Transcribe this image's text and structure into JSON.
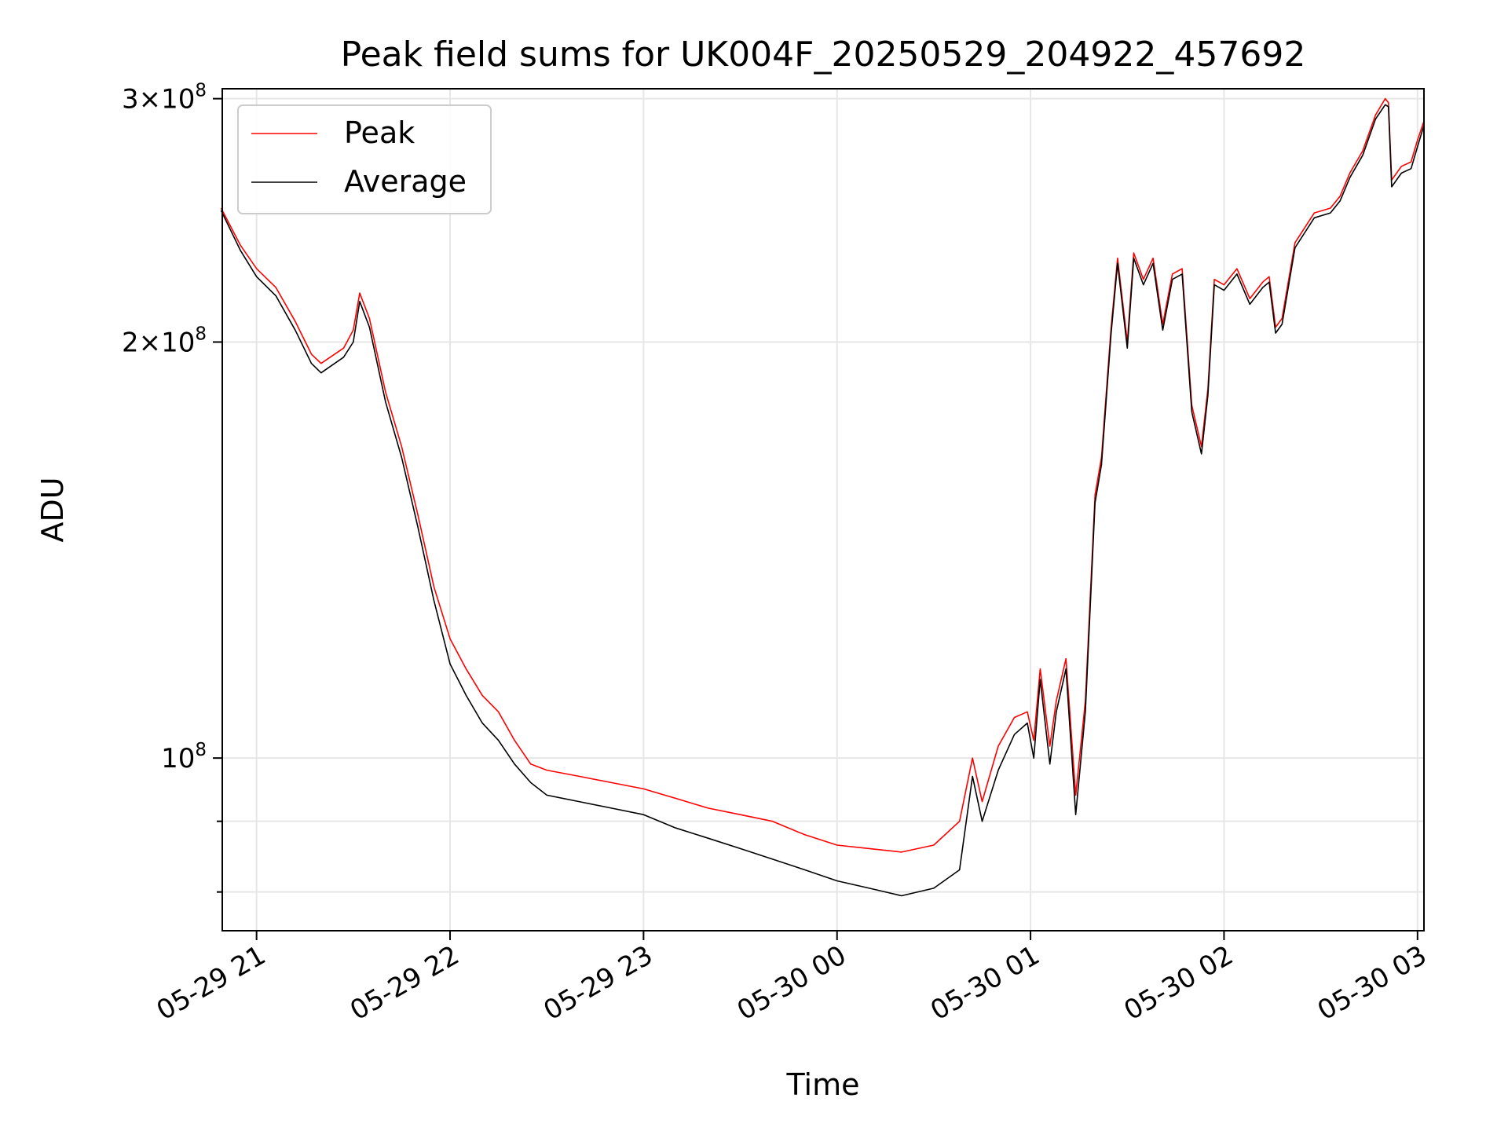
{
  "chart_data": {
    "type": "line",
    "title": "Peak field sums for UK004F_20250529_204922_457692",
    "xlabel": "Time",
    "ylabel": "ADU",
    "y_scale": "log",
    "grid": true,
    "legend_position": "top-left",
    "x_range": [
      "2025-05-29 20:49:22",
      "2025-05-30 03:02:00"
    ],
    "ylim": [
      75000000,
      305000000
    ],
    "x_ticks": [
      "05-29 21",
      "05-29 22",
      "05-29 23",
      "05-30 00",
      "05-30 01",
      "05-30 02",
      "05-30 03"
    ],
    "x_tick_times": [
      "2025-05-29 21:00",
      "2025-05-29 22:00",
      "2025-05-29 23:00",
      "2025-05-30 00:00",
      "2025-05-30 01:00",
      "2025-05-30 02:00",
      "2025-05-30 03:00"
    ],
    "y_ticks": [
      {
        "value": 100000000,
        "mantissa": "",
        "exp": "8"
      },
      {
        "value": 200000000,
        "mantissa": "2",
        "exp": "8"
      },
      {
        "value": 300000000,
        "mantissa": "3",
        "exp": "8"
      }
    ],
    "y_minor_ticks": [
      80000000,
      90000000
    ],
    "series": [
      {
        "name": "Peak",
        "color": "#ff0000",
        "points": [
          [
            "2025-05-29 20:49",
            250000000
          ],
          [
            "2025-05-29 20:55",
            235000000
          ],
          [
            "2025-05-29 21:00",
            226000000
          ],
          [
            "2025-05-29 21:06",
            219000000
          ],
          [
            "2025-05-29 21:12",
            207000000
          ],
          [
            "2025-05-29 21:17",
            196000000
          ],
          [
            "2025-05-29 21:20",
            193000000
          ],
          [
            "2025-05-29 21:27",
            198000000
          ],
          [
            "2025-05-29 21:30",
            204000000
          ],
          [
            "2025-05-29 21:32",
            217000000
          ],
          [
            "2025-05-29 21:35",
            208000000
          ],
          [
            "2025-05-29 21:40",
            184000000
          ],
          [
            "2025-05-29 21:45",
            168000000
          ],
          [
            "2025-05-29 21:50",
            150000000
          ],
          [
            "2025-05-29 21:55",
            133000000
          ],
          [
            "2025-05-29 22:00",
            122000000
          ],
          [
            "2025-05-29 22:05",
            116000000
          ],
          [
            "2025-05-29 22:10",
            111000000
          ],
          [
            "2025-05-29 22:15",
            108000000
          ],
          [
            "2025-05-29 22:20",
            103000000
          ],
          [
            "2025-05-29 22:25",
            99000000
          ],
          [
            "2025-05-29 22:30",
            98000000
          ],
          [
            "2025-05-29 22:40",
            97000000
          ],
          [
            "2025-05-29 22:50",
            96000000
          ],
          [
            "2025-05-29 23:00",
            95000000
          ],
          [
            "2025-05-29 23:10",
            93500000
          ],
          [
            "2025-05-29 23:20",
            92000000
          ],
          [
            "2025-05-29 23:30",
            91000000
          ],
          [
            "2025-05-29 23:40",
            90000000
          ],
          [
            "2025-05-29 23:50",
            88000000
          ],
          [
            "2025-05-30 00:00",
            86500000
          ],
          [
            "2025-05-30 00:10",
            86000000
          ],
          [
            "2025-05-30 00:20",
            85500000
          ],
          [
            "2025-05-30 00:30",
            86500000
          ],
          [
            "2025-05-30 00:38",
            90000000
          ],
          [
            "2025-05-30 00:42",
            100000000
          ],
          [
            "2025-05-30 00:45",
            93000000
          ],
          [
            "2025-05-30 00:50",
            102000000
          ],
          [
            "2025-05-30 00:55",
            107000000
          ],
          [
            "2025-05-30 00:59",
            108000000
          ],
          [
            "2025-05-30 01:01",
            103000000
          ],
          [
            "2025-05-30 01:03",
            116000000
          ],
          [
            "2025-05-30 01:06",
            102000000
          ],
          [
            "2025-05-30 01:08",
            110000000
          ],
          [
            "2025-05-30 01:11",
            118000000
          ],
          [
            "2025-05-30 01:14",
            94000000
          ],
          [
            "2025-05-30 01:17",
            110000000
          ],
          [
            "2025-05-30 01:20",
            155000000
          ],
          [
            "2025-05-30 01:22",
            165000000
          ],
          [
            "2025-05-30 01:25",
            205000000
          ],
          [
            "2025-05-30 01:27",
            230000000
          ],
          [
            "2025-05-30 01:30",
            200000000
          ],
          [
            "2025-05-30 01:32",
            232000000
          ],
          [
            "2025-05-30 01:35",
            222000000
          ],
          [
            "2025-05-30 01:38",
            230000000
          ],
          [
            "2025-05-30 01:41",
            206000000
          ],
          [
            "2025-05-30 01:44",
            224000000
          ],
          [
            "2025-05-30 01:47",
            226000000
          ],
          [
            "2025-05-30 01:50",
            180000000
          ],
          [
            "2025-05-30 01:53",
            168000000
          ],
          [
            "2025-05-30 01:55",
            185000000
          ],
          [
            "2025-05-30 01:57",
            222000000
          ],
          [
            "2025-05-30 02:00",
            220000000
          ],
          [
            "2025-05-30 02:04",
            226000000
          ],
          [
            "2025-05-30 02:08",
            215000000
          ],
          [
            "2025-05-30 02:12",
            221000000
          ],
          [
            "2025-05-30 02:14",
            223000000
          ],
          [
            "2025-05-30 02:16",
            205000000
          ],
          [
            "2025-05-30 02:18",
            208000000
          ],
          [
            "2025-05-30 02:22",
            236000000
          ],
          [
            "2025-05-30 02:28",
            248000000
          ],
          [
            "2025-05-30 02:33",
            250000000
          ],
          [
            "2025-05-30 02:36",
            255000000
          ],
          [
            "2025-05-30 02:39",
            265000000
          ],
          [
            "2025-05-30 02:43",
            275000000
          ],
          [
            "2025-05-30 02:47",
            292000000
          ],
          [
            "2025-05-30 02:50",
            300000000
          ],
          [
            "2025-05-30 02:51",
            298000000
          ],
          [
            "2025-05-30 02:52",
            262000000
          ],
          [
            "2025-05-30 02:55",
            268000000
          ],
          [
            "2025-05-30 02:58",
            270000000
          ],
          [
            "2025-05-30 03:00",
            280000000
          ],
          [
            "2025-05-30 03:02",
            289000000
          ]
        ]
      },
      {
        "name": "Average",
        "color": "#000000",
        "points": [
          [
            "2025-05-29 20:49",
            249000000
          ],
          [
            "2025-05-29 20:55",
            233000000
          ],
          [
            "2025-05-29 21:00",
            223000000
          ],
          [
            "2025-05-29 21:06",
            216000000
          ],
          [
            "2025-05-29 21:12",
            204000000
          ],
          [
            "2025-05-29 21:17",
            193000000
          ],
          [
            "2025-05-29 21:20",
            190000000
          ],
          [
            "2025-05-29 21:27",
            195000000
          ],
          [
            "2025-05-29 21:30",
            200000000
          ],
          [
            "2025-05-29 21:32",
            214000000
          ],
          [
            "2025-05-29 21:35",
            205000000
          ],
          [
            "2025-05-29 21:40",
            181000000
          ],
          [
            "2025-05-29 21:45",
            165000000
          ],
          [
            "2025-05-29 21:50",
            147000000
          ],
          [
            "2025-05-29 21:55",
            130000000
          ],
          [
            "2025-05-29 22:00",
            117000000
          ],
          [
            "2025-05-29 22:05",
            111000000
          ],
          [
            "2025-05-29 22:10",
            106000000
          ],
          [
            "2025-05-29 22:15",
            103000000
          ],
          [
            "2025-05-29 22:20",
            99000000
          ],
          [
            "2025-05-29 22:25",
            96000000
          ],
          [
            "2025-05-29 22:30",
            94000000
          ],
          [
            "2025-05-29 22:40",
            93000000
          ],
          [
            "2025-05-29 22:50",
            92000000
          ],
          [
            "2025-05-29 23:00",
            91000000
          ],
          [
            "2025-05-29 23:10",
            89000000
          ],
          [
            "2025-05-29 23:20",
            87500000
          ],
          [
            "2025-05-29 23:30",
            86000000
          ],
          [
            "2025-05-29 23:40",
            84500000
          ],
          [
            "2025-05-29 23:50",
            83000000
          ],
          [
            "2025-05-30 00:00",
            81500000
          ],
          [
            "2025-05-30 00:10",
            80500000
          ],
          [
            "2025-05-30 00:20",
            79500000
          ],
          [
            "2025-05-30 00:30",
            80500000
          ],
          [
            "2025-05-30 00:38",
            83000000
          ],
          [
            "2025-05-30 00:42",
            97000000
          ],
          [
            "2025-05-30 00:45",
            90000000
          ],
          [
            "2025-05-30 00:50",
            98000000
          ],
          [
            "2025-05-30 00:55",
            104000000
          ],
          [
            "2025-05-30 00:59",
            106000000
          ],
          [
            "2025-05-30 01:01",
            100000000
          ],
          [
            "2025-05-30 01:03",
            114000000
          ],
          [
            "2025-05-30 01:06",
            99000000
          ],
          [
            "2025-05-30 01:08",
            108000000
          ],
          [
            "2025-05-30 01:11",
            116000000
          ],
          [
            "2025-05-30 01:14",
            91000000
          ],
          [
            "2025-05-30 01:17",
            108000000
          ],
          [
            "2025-05-30 01:20",
            153000000
          ],
          [
            "2025-05-30 01:22",
            163000000
          ],
          [
            "2025-05-30 01:25",
            203000000
          ],
          [
            "2025-05-30 01:27",
            228000000
          ],
          [
            "2025-05-30 01:30",
            198000000
          ],
          [
            "2025-05-30 01:32",
            230000000
          ],
          [
            "2025-05-30 01:35",
            220000000
          ],
          [
            "2025-05-30 01:38",
            228000000
          ],
          [
            "2025-05-30 01:41",
            204000000
          ],
          [
            "2025-05-30 01:44",
            222000000
          ],
          [
            "2025-05-30 01:47",
            224000000
          ],
          [
            "2025-05-30 01:50",
            178000000
          ],
          [
            "2025-05-30 01:53",
            166000000
          ],
          [
            "2025-05-30 01:55",
            183000000
          ],
          [
            "2025-05-30 01:57",
            220000000
          ],
          [
            "2025-05-30 02:00",
            218000000
          ],
          [
            "2025-05-30 02:04",
            224000000
          ],
          [
            "2025-05-30 02:08",
            213000000
          ],
          [
            "2025-05-30 02:12",
            219000000
          ],
          [
            "2025-05-30 02:14",
            221000000
          ],
          [
            "2025-05-30 02:16",
            203000000
          ],
          [
            "2025-05-30 02:18",
            206000000
          ],
          [
            "2025-05-30 02:22",
            234000000
          ],
          [
            "2025-05-30 02:28",
            246000000
          ],
          [
            "2025-05-30 02:33",
            248000000
          ],
          [
            "2025-05-30 02:36",
            253000000
          ],
          [
            "2025-05-30 02:39",
            263000000
          ],
          [
            "2025-05-30 02:43",
            273000000
          ],
          [
            "2025-05-30 02:47",
            290000000
          ],
          [
            "2025-05-30 02:50",
            297000000
          ],
          [
            "2025-05-30 02:51",
            296000000
          ],
          [
            "2025-05-30 02:52",
            259000000
          ],
          [
            "2025-05-30 02:55",
            265000000
          ],
          [
            "2025-05-30 02:58",
            267000000
          ],
          [
            "2025-05-30 03:00",
            277000000
          ],
          [
            "2025-05-30 03:02",
            287000000
          ]
        ]
      }
    ]
  }
}
